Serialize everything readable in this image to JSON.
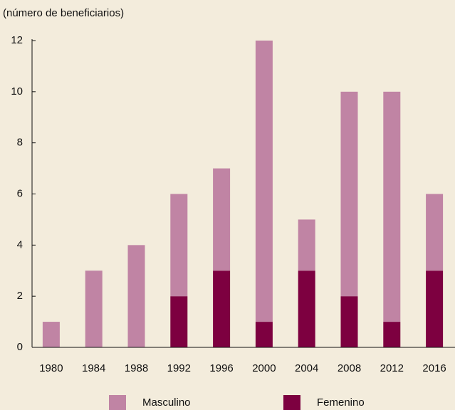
{
  "chart_data": {
    "type": "stacked-bar",
    "title": "(número de beneficiarios)",
    "categories": [
      "1980",
      "1984",
      "1988",
      "1992",
      "1996",
      "2000",
      "2004",
      "2008",
      "2012",
      "2016"
    ],
    "series": [
      {
        "name": "Masculino",
        "color": "#c084a4",
        "values": [
          1,
          3,
          4,
          4,
          4,
          11,
          2,
          8,
          9,
          3
        ]
      },
      {
        "name": "Femenino",
        "color": "#7d0040",
        "values": [
          0,
          0,
          0,
          2,
          3,
          1,
          3,
          2,
          1,
          3
        ]
      }
    ],
    "ylim": [
      0,
      12
    ],
    "yticks": [
      0,
      2,
      4,
      6,
      8,
      10,
      12
    ]
  }
}
